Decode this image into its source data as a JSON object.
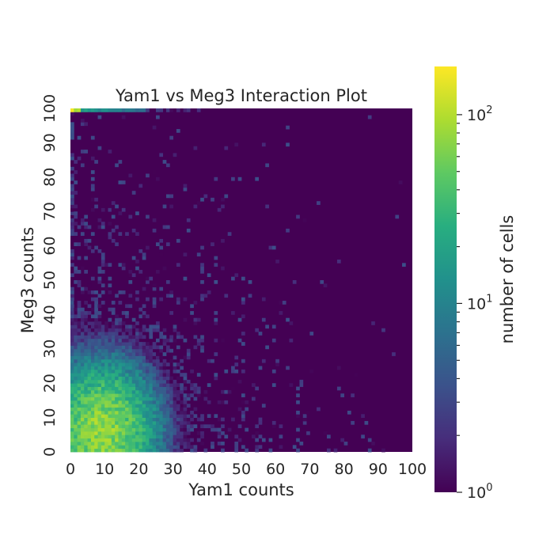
{
  "chart_data": {
    "type": "heatmap",
    "title": "Yam1 vs Meg3 Interaction Plot",
    "xlabel": "Yam1 counts",
    "ylabel": "Meg3 counts",
    "xlim": [
      0,
      100
    ],
    "ylim": [
      0,
      100
    ],
    "x_ticks": [
      "0",
      "10",
      "20",
      "30",
      "40",
      "50",
      "60",
      "70",
      "80",
      "90",
      "100"
    ],
    "y_ticks": [
      "0",
      "10",
      "20",
      "30",
      "40",
      "50",
      "60",
      "70",
      "80",
      "90",
      "100"
    ],
    "bin_width": 1,
    "color_scale": "log",
    "colormap": "viridis",
    "colorbar": {
      "label": "number of cells",
      "range": [
        1,
        180
      ],
      "major_ticks": [
        {
          "value": 1,
          "base": "10",
          "exp": "0"
        },
        {
          "value": 10,
          "base": "10",
          "exp": "1"
        },
        {
          "value": 100,
          "base": "10",
          "exp": "2"
        }
      ]
    },
    "density_model": {
      "peak_count": 75,
      "peak_yam1": 9,
      "peak_meg3": 6,
      "spread_yam1": 8,
      "spread_meg3": 10,
      "max_meg3_capped": 100,
      "capped_row_peak_count": 170
    },
    "background_color": "#440154"
  }
}
